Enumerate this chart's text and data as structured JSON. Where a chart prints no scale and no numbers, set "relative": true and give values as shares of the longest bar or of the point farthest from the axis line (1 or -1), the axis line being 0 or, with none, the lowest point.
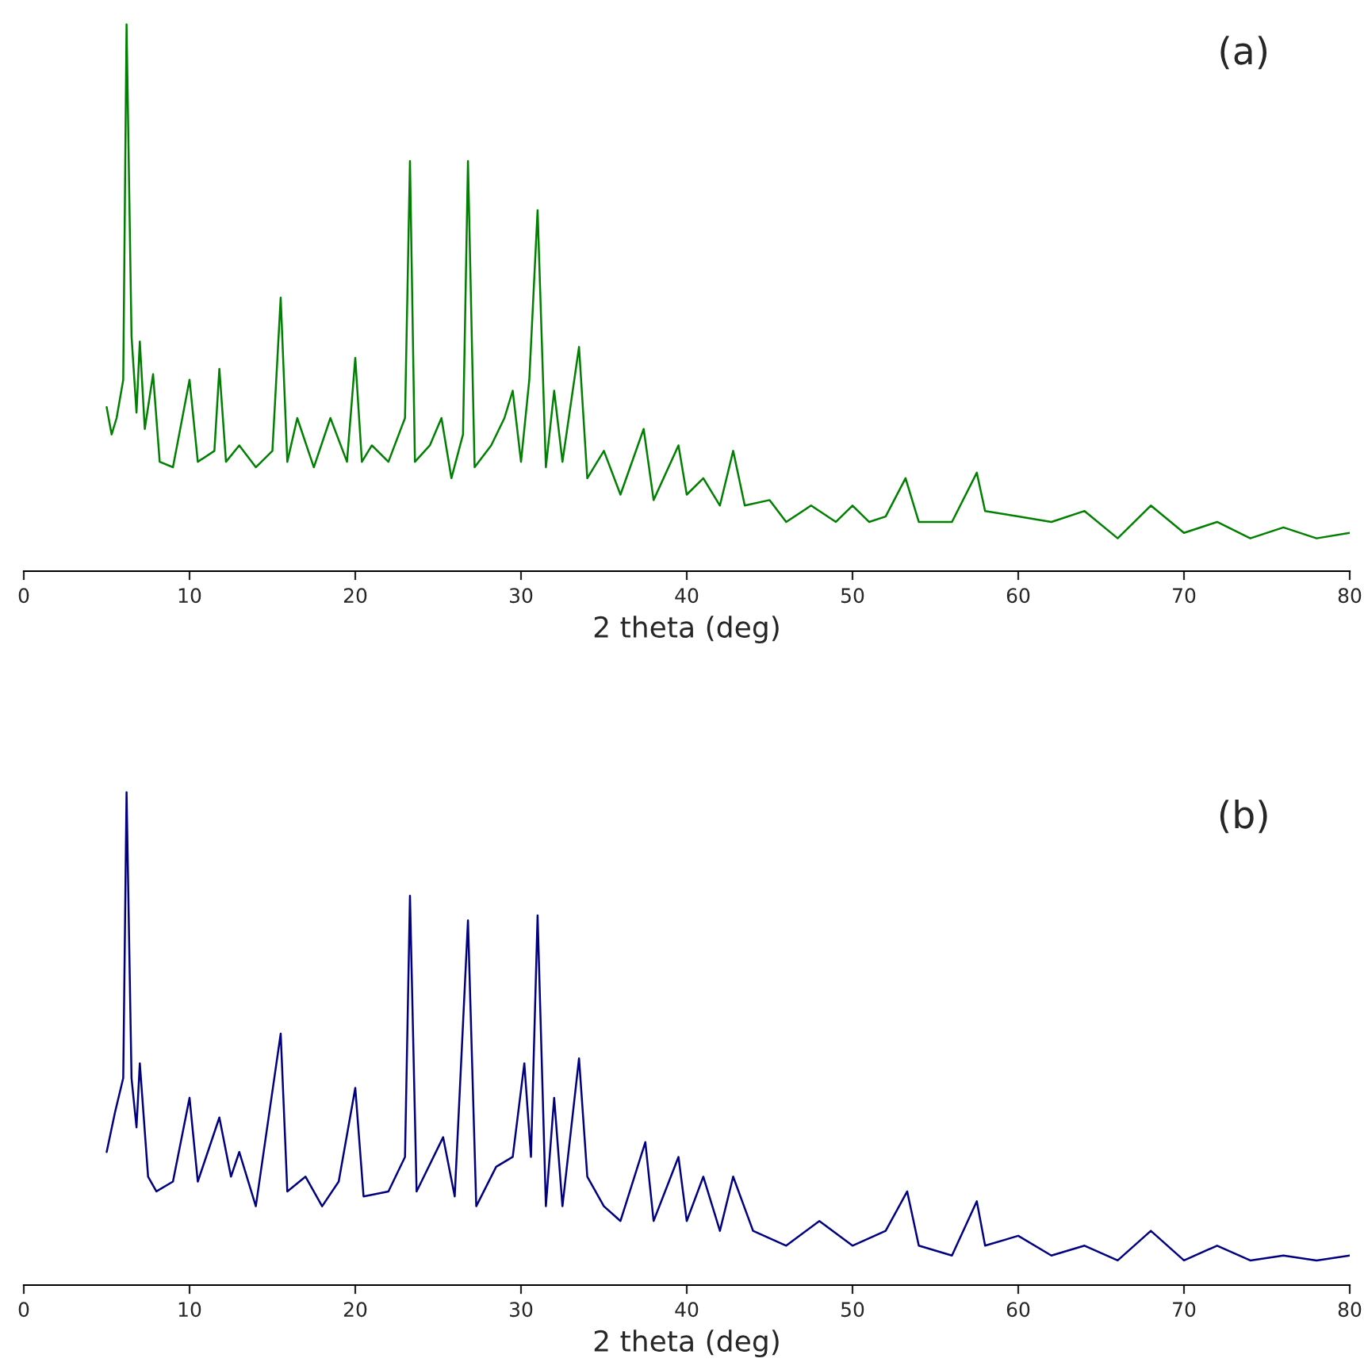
{
  "chart_data": [
    {
      "type": "line",
      "relative": true,
      "xlabel": "2 theta (deg)",
      "annotations": [
        "(a)"
      ],
      "xlim": [
        0,
        80
      ],
      "xticks": [
        0,
        10,
        20,
        30,
        40,
        50,
        60,
        70,
        80
      ],
      "grid": false,
      "legend": false,
      "marker": "none",
      "line_style": "solid",
      "tick_labels": "x",
      "series": [
        {
          "color": "#008000",
          "x": [
            5.0,
            5.3,
            5.6,
            6.0,
            6.2,
            6.5,
            6.8,
            7.0,
            7.3,
            7.8,
            8.2,
            9,
            10,
            10.5,
            11.5,
            11.8,
            12.2,
            13,
            14,
            15.0,
            15.5,
            15.9,
            16.5,
            17.5,
            18.5,
            19.5,
            20.0,
            20.4,
            21,
            22,
            23.0,
            23.3,
            23.6,
            24.5,
            25.2,
            25.8,
            26.5,
            26.8,
            27.2,
            28.2,
            29,
            29.5,
            30,
            30.5,
            31.0,
            31.5,
            32.0,
            32.5,
            33.5,
            34,
            35,
            36,
            37.4,
            38,
            39.5,
            40,
            41,
            42,
            42.8,
            43.5,
            45,
            46,
            47.5,
            49,
            50,
            51,
            52,
            53.2,
            54,
            56,
            57.5,
            58,
            60,
            62,
            64,
            66,
            68,
            70,
            72,
            74,
            76,
            78,
            80
          ],
          "values": [
            0.3,
            0.25,
            0.28,
            0.35,
            1,
            0.43,
            0.29,
            0.42,
            0.26,
            0.36,
            0.2,
            0.19,
            0.35,
            0.2,
            0.22,
            0.37,
            0.2,
            0.23,
            0.19,
            0.22,
            0.5,
            0.2,
            0.28,
            0.19,
            0.28,
            0.2,
            0.39,
            0.2,
            0.23,
            0.2,
            0.28,
            0.75,
            0.2,
            0.23,
            0.28,
            0.17,
            0.25,
            0.75,
            0.19,
            0.23,
            0.28,
            0.33,
            0.2,
            0.35,
            0.66,
            0.19,
            0.33,
            0.2,
            0.41,
            0.17,
            0.22,
            0.14,
            0.26,
            0.13,
            0.23,
            0.14,
            0.17,
            0.12,
            0.22,
            0.12,
            0.13,
            0.09,
            0.12,
            0.09,
            0.12,
            0.09,
            0.1,
            0.17,
            0.09,
            0.09,
            0.18,
            0.11,
            0.1,
            0.09,
            0.11,
            0.06,
            0.12,
            0.07,
            0.09,
            0.06,
            0.08,
            0.06,
            0.07
          ]
        }
      ]
    },
    {
      "type": "line",
      "relative": true,
      "xlabel": "2 theta (deg)",
      "annotations": [
        "(b)"
      ],
      "xlim": [
        0,
        80
      ],
      "xticks": [
        0,
        10,
        20,
        30,
        40,
        50,
        60,
        70,
        80
      ],
      "grid": false,
      "legend": false,
      "marker": "none",
      "line_style": "solid",
      "tick_labels": "x",
      "series": [
        {
          "color": "#000080",
          "x": [
            5.0,
            5.5,
            6.0,
            6.2,
            6.5,
            6.8,
            7.0,
            7.5,
            8,
            9,
            10,
            10.5,
            11.8,
            12.5,
            13,
            14,
            15.5,
            15.9,
            17,
            18,
            19,
            20,
            20.5,
            22,
            23,
            23.3,
            23.7,
            25.3,
            26,
            26.8,
            27.3,
            28.5,
            29.5,
            30.2,
            30.6,
            31.0,
            31.5,
            32.0,
            32.5,
            33.5,
            34,
            35,
            36,
            37.5,
            38,
            39.5,
            40,
            41,
            42,
            42.8,
            44,
            46,
            48,
            50,
            52,
            53.3,
            54,
            56,
            57.5,
            58,
            60,
            62,
            64,
            66,
            68,
            70,
            72,
            74,
            76,
            78,
            80
          ],
          "values": [
            0.27,
            0.35,
            0.42,
            1,
            0.42,
            0.32,
            0.45,
            0.22,
            0.19,
            0.21,
            0.38,
            0.21,
            0.34,
            0.22,
            0.27,
            0.16,
            0.51,
            0.19,
            0.22,
            0.16,
            0.21,
            0.4,
            0.18,
            0.19,
            0.26,
            0.79,
            0.19,
            0.3,
            0.18,
            0.74,
            0.16,
            0.24,
            0.26,
            0.45,
            0.26,
            0.75,
            0.16,
            0.38,
            0.16,
            0.46,
            0.22,
            0.16,
            0.13,
            0.29,
            0.13,
            0.26,
            0.13,
            0.22,
            0.11,
            0.22,
            0.11,
            0.08,
            0.13,
            0.08,
            0.11,
            0.19,
            0.08,
            0.06,
            0.17,
            0.08,
            0.1,
            0.06,
            0.08,
            0.05,
            0.11,
            0.05,
            0.08,
            0.05,
            0.06,
            0.05,
            0.06
          ]
        }
      ]
    }
  ]
}
